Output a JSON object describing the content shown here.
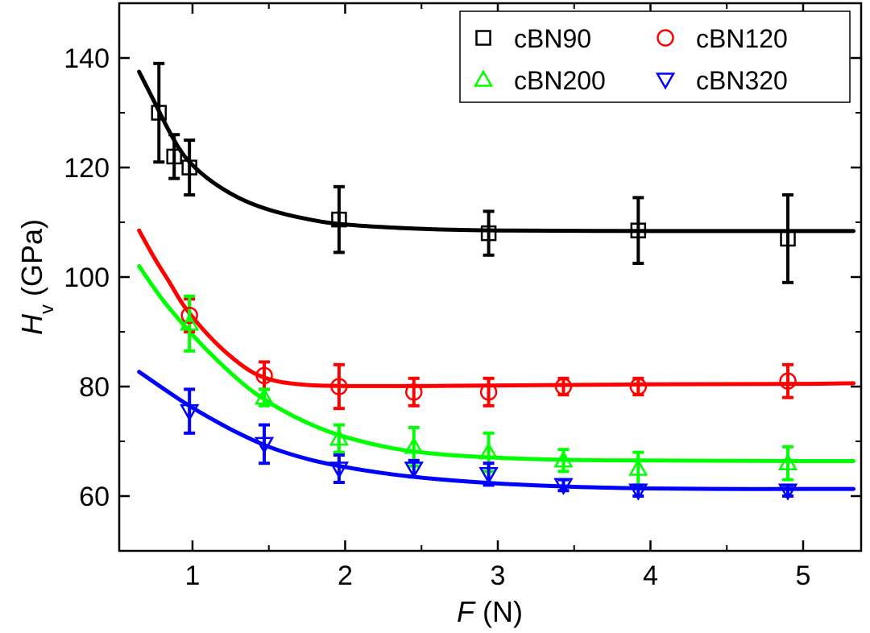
{
  "chart_data": {
    "type": "scatter",
    "xlabel": {
      "var": "F",
      "unit": " (N)"
    },
    "ylabel": {
      "var": "H",
      "sub": "v",
      "unit": " (GPa)"
    },
    "xlim": [
      0.52,
      5.38
    ],
    "ylim": [
      50,
      150
    ],
    "xticks": [
      1,
      2,
      3,
      4,
      5
    ],
    "xtick_labels": [
      "1",
      "2",
      "3",
      "4",
      "5"
    ],
    "yticks": [
      60,
      80,
      100,
      120,
      140
    ],
    "ytick_labels": [
      "60",
      "80",
      "100",
      "120",
      "140"
    ],
    "legend_position": "top-right",
    "series": [
      {
        "name": "cBN90",
        "marker": "square",
        "color": "#000000",
        "points": [
          {
            "x": 0.78,
            "y": 130,
            "err": 9
          },
          {
            "x": 0.88,
            "y": 122,
            "err": 4
          },
          {
            "x": 0.98,
            "y": 120,
            "err": 5
          },
          {
            "x": 1.96,
            "y": 110.5,
            "err": 6
          },
          {
            "x": 2.94,
            "y": 108,
            "err": 4
          },
          {
            "x": 3.92,
            "y": 108.5,
            "err": 6
          },
          {
            "x": 4.9,
            "y": 107,
            "err": 8
          }
        ],
        "fit": [
          [
            0.65,
            137.5
          ],
          [
            0.75,
            132
          ],
          [
            0.85,
            126.5
          ],
          [
            0.95,
            122
          ],
          [
            1.1,
            118
          ],
          [
            1.3,
            114.5
          ],
          [
            1.5,
            112.3
          ],
          [
            1.75,
            110.6
          ],
          [
            2.0,
            109.6
          ],
          [
            2.5,
            108.8
          ],
          [
            3.0,
            108.5
          ],
          [
            4.0,
            108.4
          ],
          [
            5.0,
            108.4
          ],
          [
            5.33,
            108.4
          ]
        ]
      },
      {
        "name": "cBN120",
        "marker": "circle",
        "color": "#ff0000",
        "points": [
          {
            "x": 0.98,
            "y": 93,
            "err": 3
          },
          {
            "x": 1.47,
            "y": 82,
            "err": 2.5
          },
          {
            "x": 1.96,
            "y": 80,
            "err": 4
          },
          {
            "x": 2.45,
            "y": 79,
            "err": 2.5
          },
          {
            "x": 2.94,
            "y": 79,
            "err": 2.5
          },
          {
            "x": 3.43,
            "y": 80,
            "err": 1.5
          },
          {
            "x": 3.92,
            "y": 80,
            "err": 1.5
          },
          {
            "x": 4.9,
            "y": 81,
            "err": 3
          }
        ],
        "fit": [
          [
            0.65,
            108.5
          ],
          [
            0.75,
            103.5
          ],
          [
            0.85,
            99
          ],
          [
            0.95,
            94.5
          ],
          [
            1.1,
            89.5
          ],
          [
            1.25,
            85.5
          ],
          [
            1.4,
            82.5
          ],
          [
            1.55,
            81
          ],
          [
            1.75,
            80.3
          ],
          [
            2.0,
            80.1
          ],
          [
            2.5,
            80.1
          ],
          [
            3.0,
            80.2
          ],
          [
            4.0,
            80.4
          ],
          [
            5.0,
            80.5
          ],
          [
            5.33,
            80.6
          ]
        ]
      },
      {
        "name": "cBN200",
        "marker": "triangle-up",
        "color": "#00ff00",
        "points": [
          {
            "x": 0.98,
            "y": 91.5,
            "err": 5
          },
          {
            "x": 1.47,
            "y": 78,
            "err": 1.5
          },
          {
            "x": 1.96,
            "y": 70.5,
            "err": 2.5
          },
          {
            "x": 2.45,
            "y": 69,
            "err": 3.5
          },
          {
            "x": 2.94,
            "y": 68,
            "err": 3.5
          },
          {
            "x": 3.43,
            "y": 66.5,
            "err": 2
          },
          {
            "x": 3.92,
            "y": 65,
            "err": 3
          },
          {
            "x": 4.9,
            "y": 66,
            "err": 3
          }
        ],
        "fit": [
          [
            0.65,
            102
          ],
          [
            0.8,
            96
          ],
          [
            0.95,
            91
          ],
          [
            1.1,
            86.5
          ],
          [
            1.25,
            82.5
          ],
          [
            1.4,
            79
          ],
          [
            1.6,
            75.5
          ],
          [
            1.8,
            72.8
          ],
          [
            2.0,
            70.8
          ],
          [
            2.3,
            68.8
          ],
          [
            2.6,
            67.7
          ],
          [
            3.0,
            67
          ],
          [
            3.5,
            66.6
          ],
          [
            4.0,
            66.5
          ],
          [
            5.0,
            66.4
          ],
          [
            5.33,
            66.4
          ]
        ]
      },
      {
        "name": "cBN320",
        "marker": "triangle-down",
        "color": "#0000ff",
        "points": [
          {
            "x": 0.98,
            "y": 75.5,
            "err": 4
          },
          {
            "x": 1.47,
            "y": 69.5,
            "err": 3.5
          },
          {
            "x": 1.96,
            "y": 65,
            "err": 2.5
          },
          {
            "x": 2.45,
            "y": 65,
            "err": 1.5
          },
          {
            "x": 2.94,
            "y": 64,
            "err": 2
          },
          {
            "x": 3.43,
            "y": 62,
            "err": 1
          },
          {
            "x": 3.92,
            "y": 61,
            "err": 1
          },
          {
            "x": 4.9,
            "y": 61,
            "err": 1
          }
        ],
        "fit": [
          [
            0.65,
            82.7
          ],
          [
            0.8,
            79.8
          ],
          [
            0.95,
            77
          ],
          [
            1.1,
            74.5
          ],
          [
            1.3,
            71.5
          ],
          [
            1.5,
            69
          ],
          [
            1.75,
            66.8
          ],
          [
            2.0,
            65.3
          ],
          [
            2.3,
            64
          ],
          [
            2.6,
            63.1
          ],
          [
            3.0,
            62.3
          ],
          [
            3.5,
            61.7
          ],
          [
            4.0,
            61.4
          ],
          [
            4.5,
            61.3
          ],
          [
            5.0,
            61.3
          ],
          [
            5.33,
            61.3
          ]
        ]
      }
    ]
  }
}
